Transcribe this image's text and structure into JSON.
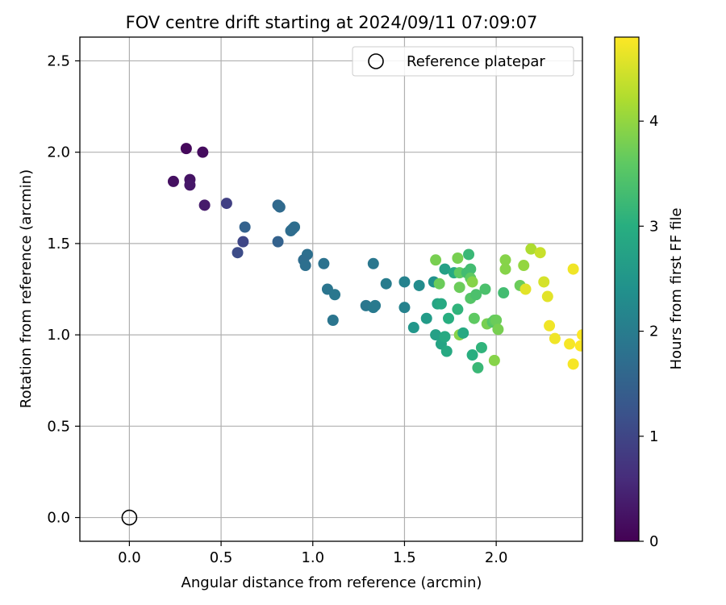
{
  "chart_data": {
    "type": "scatter",
    "title": "FOV centre drift starting at 2024/09/11 07:09:07",
    "xlabel": "Angular distance from reference (arcmin)",
    "ylabel": "Rotation from reference (arcmin)",
    "xlim": [
      -0.27,
      2.47
    ],
    "ylim": [
      -0.13,
      2.63
    ],
    "xticks": [
      0.0,
      0.5,
      1.0,
      1.5,
      2.0
    ],
    "xtick_labels": [
      "0.0",
      "0.5",
      "1.0",
      "1.5",
      "2.0"
    ],
    "yticks": [
      0.0,
      0.5,
      1.0,
      1.5,
      2.0,
      2.5
    ],
    "ytick_labels": [
      "0.0",
      "0.5",
      "1.0",
      "1.5",
      "2.0",
      "2.5"
    ],
    "grid": true,
    "colormap": "viridis",
    "colorbar": {
      "label": "Hours from first FF file",
      "range": [
        0,
        4.8
      ],
      "ticks": [
        0,
        1,
        2,
        3,
        4
      ],
      "tick_labels": [
        "0",
        "1",
        "2",
        "3",
        "4"
      ]
    },
    "legend": {
      "placement": "top-right",
      "entries": [
        "Reference platepar"
      ]
    },
    "reference_point": {
      "x": 0.0,
      "y": 0.0
    },
    "points": [
      {
        "x": 0.31,
        "y": 2.02,
        "c": 0.1
      },
      {
        "x": 0.4,
        "y": 2.0,
        "c": 0.15
      },
      {
        "x": 0.24,
        "y": 1.84,
        "c": 0.2
      },
      {
        "x": 0.33,
        "y": 1.85,
        "c": 0.25
      },
      {
        "x": 0.33,
        "y": 1.82,
        "c": 0.3
      },
      {
        "x": 0.41,
        "y": 1.71,
        "c": 0.35
      },
      {
        "x": 0.53,
        "y": 1.72,
        "c": 0.9
      },
      {
        "x": 0.62,
        "y": 1.51,
        "c": 1.0
      },
      {
        "x": 0.59,
        "y": 1.45,
        "c": 1.1
      },
      {
        "x": 0.63,
        "y": 1.59,
        "c": 1.5
      },
      {
        "x": 0.81,
        "y": 1.71,
        "c": 1.6
      },
      {
        "x": 0.82,
        "y": 1.7,
        "c": 1.65
      },
      {
        "x": 0.81,
        "y": 1.51,
        "c": 1.5
      },
      {
        "x": 0.88,
        "y": 1.57,
        "c": 1.7
      },
      {
        "x": 0.9,
        "y": 1.59,
        "c": 1.75
      },
      {
        "x": 0.89,
        "y": 1.58,
        "c": 1.7
      },
      {
        "x": 0.97,
        "y": 1.44,
        "c": 1.75
      },
      {
        "x": 0.95,
        "y": 1.41,
        "c": 1.7
      },
      {
        "x": 0.96,
        "y": 1.38,
        "c": 1.75
      },
      {
        "x": 1.06,
        "y": 1.39,
        "c": 1.8
      },
      {
        "x": 1.08,
        "y": 1.25,
        "c": 1.85
      },
      {
        "x": 1.12,
        "y": 1.22,
        "c": 1.9
      },
      {
        "x": 1.11,
        "y": 1.08,
        "c": 1.85
      },
      {
        "x": 1.29,
        "y": 1.16,
        "c": 1.9
      },
      {
        "x": 1.33,
        "y": 1.15,
        "c": 1.95
      },
      {
        "x": 1.34,
        "y": 1.16,
        "c": 1.95
      },
      {
        "x": 1.33,
        "y": 1.39,
        "c": 1.9
      },
      {
        "x": 1.4,
        "y": 1.28,
        "c": 2.0
      },
      {
        "x": 1.5,
        "y": 1.29,
        "c": 2.1
      },
      {
        "x": 1.5,
        "y": 1.15,
        "c": 2.1
      },
      {
        "x": 1.55,
        "y": 1.04,
        "c": 2.5
      },
      {
        "x": 1.58,
        "y": 1.27,
        "c": 2.3
      },
      {
        "x": 1.62,
        "y": 1.09,
        "c": 2.6
      },
      {
        "x": 1.66,
        "y": 1.29,
        "c": 2.4
      },
      {
        "x": 1.67,
        "y": 1.0,
        "c": 2.7
      },
      {
        "x": 1.68,
        "y": 1.17,
        "c": 2.8
      },
      {
        "x": 1.7,
        "y": 1.17,
        "c": 2.9
      },
      {
        "x": 1.7,
        "y": 0.95,
        "c": 2.8
      },
      {
        "x": 1.72,
        "y": 0.99,
        "c": 2.9
      },
      {
        "x": 1.73,
        "y": 0.91,
        "c": 2.9
      },
      {
        "x": 1.72,
        "y": 1.36,
        "c": 2.7
      },
      {
        "x": 1.74,
        "y": 1.09,
        "c": 3.0
      },
      {
        "x": 1.77,
        "y": 1.34,
        "c": 2.9
      },
      {
        "x": 1.79,
        "y": 1.14,
        "c": 3.1
      },
      {
        "x": 1.67,
        "y": 1.41,
        "c": 3.8
      },
      {
        "x": 1.69,
        "y": 1.28,
        "c": 3.7
      },
      {
        "x": 1.79,
        "y": 1.42,
        "c": 3.8
      },
      {
        "x": 1.8,
        "y": 1.34,
        "c": 3.6
      },
      {
        "x": 1.8,
        "y": 1.26,
        "c": 3.7
      },
      {
        "x": 1.8,
        "y": 1.0,
        "c": 3.9
      },
      {
        "x": 1.82,
        "y": 1.01,
        "c": 2.9
      },
      {
        "x": 1.84,
        "y": 1.34,
        "c": 3.3
      },
      {
        "x": 1.85,
        "y": 1.44,
        "c": 3.2
      },
      {
        "x": 1.86,
        "y": 1.36,
        "c": 3.3
      },
      {
        "x": 1.86,
        "y": 1.31,
        "c": 3.6
      },
      {
        "x": 1.86,
        "y": 1.2,
        "c": 3.5
      },
      {
        "x": 1.87,
        "y": 1.29,
        "c": 3.9
      },
      {
        "x": 1.87,
        "y": 0.89,
        "c": 3.0
      },
      {
        "x": 1.88,
        "y": 1.09,
        "c": 3.6
      },
      {
        "x": 1.89,
        "y": 1.22,
        "c": 3.4
      },
      {
        "x": 1.9,
        "y": 0.82,
        "c": 3.2
      },
      {
        "x": 1.92,
        "y": 0.93,
        "c": 3.1
      },
      {
        "x": 1.94,
        "y": 1.25,
        "c": 3.4
      },
      {
        "x": 1.95,
        "y": 1.06,
        "c": 3.8
      },
      {
        "x": 1.98,
        "y": 1.07,
        "c": 3.5
      },
      {
        "x": 1.99,
        "y": 1.08,
        "c": 3.6
      },
      {
        "x": 2.0,
        "y": 1.08,
        "c": 3.7
      },
      {
        "x": 2.01,
        "y": 1.03,
        "c": 3.8
      },
      {
        "x": 1.99,
        "y": 0.86,
        "c": 3.9
      },
      {
        "x": 2.04,
        "y": 1.23,
        "c": 3.3
      },
      {
        "x": 2.05,
        "y": 1.41,
        "c": 3.9
      },
      {
        "x": 2.05,
        "y": 1.36,
        "c": 3.9
      },
      {
        "x": 2.13,
        "y": 1.27,
        "c": 3.7
      },
      {
        "x": 2.15,
        "y": 1.38,
        "c": 4.0
      },
      {
        "x": 2.16,
        "y": 1.25,
        "c": 4.6
      },
      {
        "x": 2.19,
        "y": 1.47,
        "c": 4.2
      },
      {
        "x": 2.24,
        "y": 1.45,
        "c": 4.4
      },
      {
        "x": 2.26,
        "y": 1.29,
        "c": 4.5
      },
      {
        "x": 2.28,
        "y": 1.21,
        "c": 4.6
      },
      {
        "x": 2.29,
        "y": 1.05,
        "c": 4.7
      },
      {
        "x": 2.32,
        "y": 0.98,
        "c": 4.7
      },
      {
        "x": 2.4,
        "y": 0.95,
        "c": 4.75
      },
      {
        "x": 2.42,
        "y": 1.36,
        "c": 4.7
      },
      {
        "x": 2.42,
        "y": 0.84,
        "c": 4.75
      },
      {
        "x": 2.47,
        "y": 1.0,
        "c": 4.8
      },
      {
        "x": 2.46,
        "y": 0.94,
        "c": 4.8
      }
    ]
  }
}
